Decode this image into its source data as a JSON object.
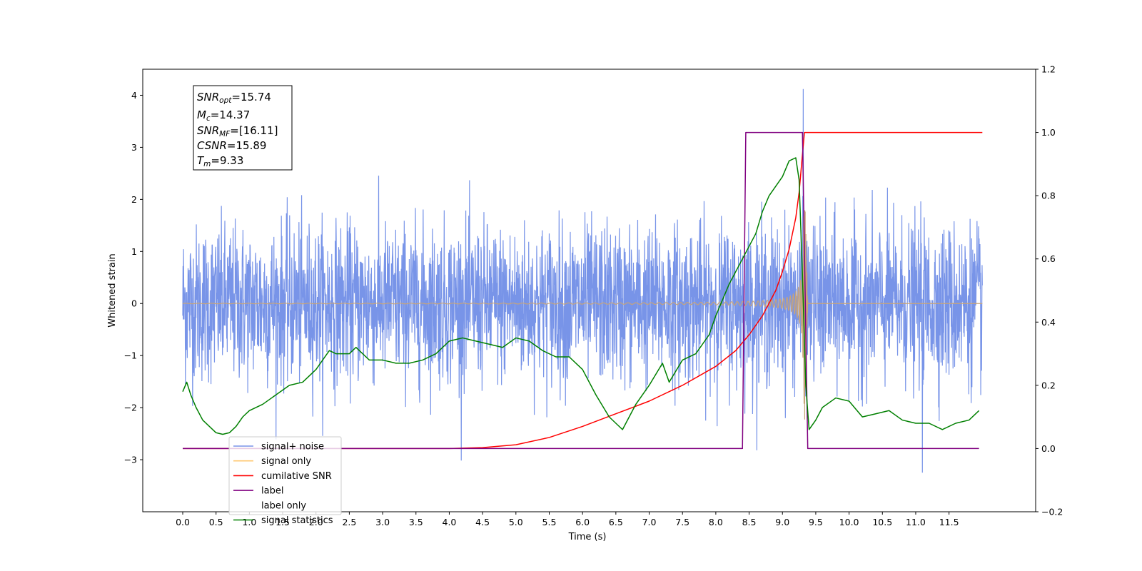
{
  "chart_data": {
    "type": "line",
    "xlabel": "Time (s)",
    "ylabel_left": "Whitened strain",
    "ylabel_right": "",
    "xlim": [
      -0.6,
      12.8
    ],
    "ylim_left": [
      -4.0,
      4.5
    ],
    "ylim_right": [
      -0.2,
      1.2
    ],
    "x_ticks": [
      "0.0",
      "0.5",
      "1.0",
      "1.5",
      "2.0",
      "2.5",
      "3.0",
      "3.5",
      "4.0",
      "4.5",
      "5.0",
      "5.5",
      "6.0",
      "6.5",
      "7.0",
      "7.5",
      "8.0",
      "8.5",
      "9.0",
      "9.5",
      "10.0",
      "10.5",
      "11.0",
      "11.5"
    ],
    "y_ticks_left": [
      "4",
      "3",
      "2",
      "1",
      "0",
      "−1",
      "−2",
      "−3"
    ],
    "y_ticks_right": [
      "1.2",
      "1.0",
      "0.8",
      "0.6",
      "0.4",
      "0.2",
      "0.0",
      "−0.2"
    ],
    "legend_position": "lower-left",
    "grid": false,
    "annotation": {
      "lines": [
        {
          "base": "SNR",
          "sub": "opt",
          "value": "=15.74"
        },
        {
          "base": "M",
          "sub": "c",
          "value": "=14.37"
        },
        {
          "base": "SNR",
          "sub": "MF",
          "value": "=[16.11]"
        },
        {
          "base": "CSNR",
          "sub": "",
          "value": "=15.89"
        },
        {
          "base": "T",
          "sub": "m",
          "value": "=9.33"
        }
      ]
    },
    "series": [
      {
        "name": "signal+ noise",
        "axis": "left",
        "color": "#7894e8",
        "style": "noise",
        "x_start": 0.0,
        "x_end": 12.0,
        "sigma": 0.75,
        "extreme_max": 4.12,
        "extreme_min": -3.25
      },
      {
        "name": "signal only",
        "axis": "left",
        "color": "#c8a47a",
        "style": "chirp",
        "x_start": 0.0,
        "x_end": 12.0,
        "merger_time": 9.33,
        "peak_amplitude": 2.45
      },
      {
        "name": "cumilative SNR",
        "axis": "right",
        "color": "#ff0000",
        "x": [
          0.0,
          4.0,
          4.5,
          5.0,
          5.5,
          6.0,
          6.5,
          7.0,
          7.5,
          8.0,
          8.3,
          8.5,
          8.7,
          8.9,
          9.0,
          9.1,
          9.2,
          9.25,
          9.3,
          9.33,
          12.0
        ],
        "y": [
          0.0,
          0.0,
          0.003,
          0.012,
          0.035,
          0.07,
          0.11,
          0.15,
          0.2,
          0.26,
          0.31,
          0.36,
          0.42,
          0.5,
          0.56,
          0.63,
          0.73,
          0.81,
          0.93,
          1.0,
          1.0
        ]
      },
      {
        "name": "label",
        "axis": "right",
        "color": "#800080",
        "x": [
          0.0,
          8.4,
          8.45,
          9.3,
          9.38,
          11.95
        ],
        "y": [
          0.0,
          0.0,
          1.0,
          1.0,
          0.0,
          0.0
        ]
      },
      {
        "name": "label only",
        "axis": "right",
        "color": "#ffffff",
        "legend_only": true,
        "x": [],
        "y": []
      },
      {
        "name": "signal statistics",
        "axis": "right",
        "color": "#008000",
        "x": [
          0.0,
          0.06,
          0.12,
          0.2,
          0.3,
          0.4,
          0.5,
          0.6,
          0.7,
          0.8,
          0.9,
          1.0,
          1.2,
          1.4,
          1.6,
          1.8,
          1.9,
          2.0,
          2.1,
          2.2,
          2.3,
          2.4,
          2.5,
          2.6,
          2.7,
          2.8,
          3.0,
          3.2,
          3.4,
          3.6,
          3.8,
          4.0,
          4.2,
          4.4,
          4.6,
          4.8,
          5.0,
          5.2,
          5.4,
          5.6,
          5.8,
          6.0,
          6.2,
          6.4,
          6.6,
          6.8,
          7.0,
          7.2,
          7.3,
          7.5,
          7.7,
          7.9,
          8.0,
          8.2,
          8.4,
          8.6,
          8.7,
          8.8,
          9.0,
          9.1,
          9.2,
          9.25,
          9.3,
          9.35,
          9.4,
          9.5,
          9.6,
          9.8,
          10.0,
          10.2,
          10.4,
          10.6,
          10.8,
          11.0,
          11.2,
          11.4,
          11.6,
          11.8,
          11.95
        ],
        "y": [
          0.18,
          0.21,
          0.17,
          0.13,
          0.09,
          0.07,
          0.05,
          0.045,
          0.05,
          0.07,
          0.1,
          0.12,
          0.14,
          0.17,
          0.2,
          0.21,
          0.23,
          0.25,
          0.28,
          0.31,
          0.3,
          0.3,
          0.3,
          0.32,
          0.3,
          0.28,
          0.28,
          0.27,
          0.27,
          0.28,
          0.3,
          0.34,
          0.35,
          0.34,
          0.33,
          0.32,
          0.35,
          0.34,
          0.31,
          0.29,
          0.29,
          0.25,
          0.17,
          0.1,
          0.06,
          0.14,
          0.2,
          0.27,
          0.21,
          0.28,
          0.3,
          0.36,
          0.42,
          0.52,
          0.6,
          0.68,
          0.75,
          0.8,
          0.86,
          0.91,
          0.92,
          0.85,
          0.55,
          0.2,
          0.06,
          0.09,
          0.13,
          0.16,
          0.15,
          0.1,
          0.11,
          0.12,
          0.09,
          0.08,
          0.08,
          0.06,
          0.08,
          0.09,
          0.12
        ]
      }
    ]
  }
}
